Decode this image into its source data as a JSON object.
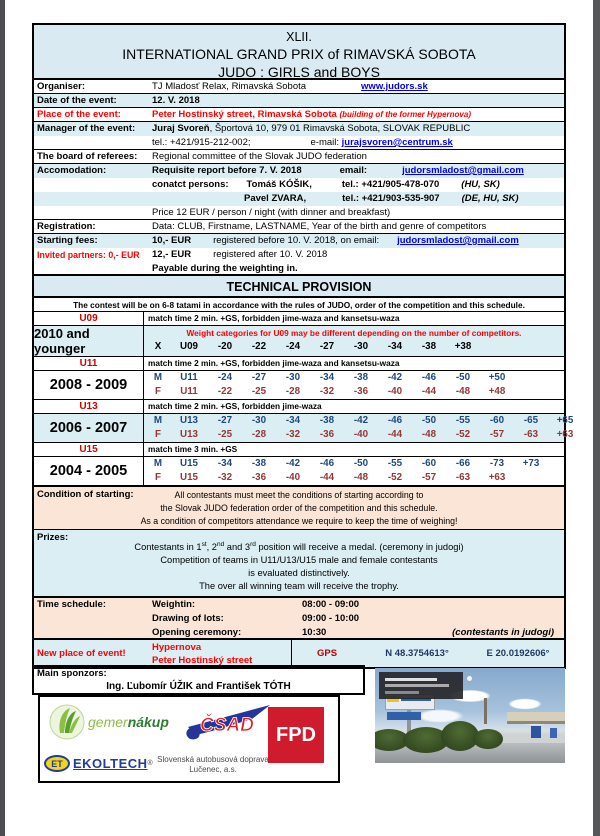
{
  "title": {
    "line1": "XLII.",
    "line2": "INTERNATIONAL GRAND PRIX of RIMAVSKÁ SOBOTA",
    "line3": "JUDO : GIRLS and BOYS"
  },
  "info": {
    "organiser": {
      "label": "Organiser:",
      "value": "TJ Mladosť Relax, Rimavská Sobota",
      "link": "www.judors.sk"
    },
    "date": {
      "label": "Date of the event:",
      "value": "12. V. 2018"
    },
    "place": {
      "label": "Place of the event:",
      "value": "Peter Hostinský street, Rimavská Sobota",
      "note": "(building of the former Hypernova)"
    },
    "manager": {
      "label": "Manager of the event:",
      "name": "Juraj Svoreň",
      "rest": ", Športová 10, 979 01 Rimavská Sobota, SLOVAK REPUBLIC",
      "tel": "tel.: +421/915-212-002;",
      "email_label": "e-mail:",
      "email": "jurajsvoren@centrum.sk"
    },
    "referees": {
      "label": "The board of referees:",
      "value": "Regional committee of the Slovak JUDO federation"
    },
    "accomodation": {
      "label": "Accomodation:",
      "l1_text": "Requisite report before 7. V. 2018",
      "l1_email_label": "email:",
      "l1_email": "judorsmladost@gmail.com",
      "l2_text": "conatct persons:",
      "l2_name": "Tomáš KÓŠIK,",
      "l2_tel": "tel.: +421/905-478-070",
      "l2_lang": "(HU, SK)",
      "l3_name": "Pavel ZVARA,",
      "l3_tel": "tel.: +421/903-535-907",
      "l3_lang": "(DE, HU, SK)",
      "l4_text": "Price 12 EUR / person / night (with dinner and breakfast)"
    },
    "registration": {
      "label": "Registration:",
      "value": "Data: CLUB, Firstname, LASTNAME, Year of the birth and genre of competitors"
    },
    "fees": {
      "label": "Starting fees:",
      "invited": "Invited partners: 0,- EUR",
      "l1_fee": "10,- EUR",
      "l1_text": "registered before 10. V. 2018, on email:",
      "l1_email": "judorsmladost@gmail.com",
      "l2_fee": "12,- EUR",
      "l2_text": "registered after 10. V. 2018",
      "l3_text": "Payable during the weighting in."
    }
  },
  "technical": {
    "header": "TECHNICAL PROVISION",
    "note": "The contest will be on 6-8 tatami in accordance with the rules of JUDO, order of the competition and this schedule."
  },
  "weights": {
    "u09": {
      "code": "U09",
      "years": "2010 and younger",
      "match": "match time 2 min. +GS, forbidden jime-waza and kansetsu-waza",
      "note": "Weight categories for U09 may be different depending on the number of competitors.",
      "x_row": {
        "sex": "X",
        "cat": "U09",
        "values": [
          "-20",
          "-22",
          "-24",
          "-27",
          "-30",
          "-34",
          "-38",
          "+38"
        ]
      }
    },
    "u11": {
      "code": "U11",
      "years": "2008 - 2009",
      "match": "match time 2 min. +GS, forbidden jime-waza and kansetsu-waza",
      "m": {
        "sex": "M",
        "cat": "U11",
        "values": [
          "-24",
          "-27",
          "-30",
          "-34",
          "-38",
          "-42",
          "-46",
          "-50",
          "+50"
        ]
      },
      "f": {
        "sex": "F",
        "cat": "U11",
        "values": [
          "-22",
          "-25",
          "-28",
          "-32",
          "-36",
          "-40",
          "-44",
          "-48",
          "+48"
        ]
      }
    },
    "u13": {
      "code": "U13",
      "years": "2006 - 2007",
      "match": "match time 2 min. +GS, forbidden jime-waza",
      "m": {
        "sex": "M",
        "cat": "U13",
        "values": [
          "-27",
          "-30",
          "-34",
          "-38",
          "-42",
          "-46",
          "-50",
          "-55",
          "-60",
          "-65",
          "+65"
        ]
      },
      "f": {
        "sex": "F",
        "cat": "U13",
        "values": [
          "-25",
          "-28",
          "-32",
          "-36",
          "-40",
          "-44",
          "-48",
          "-52",
          "-57",
          "-63",
          "+63"
        ]
      }
    },
    "u15": {
      "code": "U15",
      "years": "2004 - 2005",
      "match": "match time 3 min. +GS",
      "m": {
        "sex": "M",
        "cat": "U15",
        "values": [
          "-34",
          "-38",
          "-42",
          "-46",
          "-50",
          "-55",
          "-60",
          "-66",
          "-73",
          "+73"
        ]
      },
      "f": {
        "sex": "F",
        "cat": "U15",
        "values": [
          "-32",
          "-36",
          "-40",
          "-44",
          "-48",
          "-52",
          "-57",
          "-63",
          "+63"
        ]
      }
    }
  },
  "condition": {
    "label": "Condition of starting:",
    "lines": [
      "All contestants must meet the conditions of starting according to",
      "the Slovak JUDO federation order of the competition and this schedule.",
      "As a condition of competitors attendance we require to keep the time of weighing!"
    ]
  },
  "prizes": {
    "label": "Prizes:",
    "l1a": "Contestants in 1",
    "l1sup1": "st",
    "l1b": ", 2",
    "l1sup2": "nd",
    "l1c": " and 3",
    "l1sup3": "rd",
    "l1d": " position will receive a medal. (ceremony in judogi)",
    "l2": "Competition of teams in U11/U13/U15 male and female contestants",
    "l3": "is evaluated distinctively.",
    "l4": "The over all winning team will receive the trophy."
  },
  "schedule": {
    "label": "Time schedule:",
    "rows": [
      {
        "name": "Weightin:",
        "time": "08:00 - 09:00",
        "note": ""
      },
      {
        "name": "Drawing of lots:",
        "time": "09:00 - 10:00",
        "note": ""
      },
      {
        "name": "Opening ceremony:",
        "time": "10:30",
        "note": "(contestants in judogi)"
      }
    ]
  },
  "new_place": {
    "label": "New place of event!",
    "line1": "Hypernova",
    "line2": "Peter Hostinský street",
    "gps_label": "GPS",
    "lat": "N 48.3754613°",
    "lon": "E 20.0192606°"
  },
  "sponsors": {
    "label": "Main sponzors:",
    "names": "Ing. Ľubomír ÚŽIK and František TÓTH",
    "gemernakup_part1": "gemer",
    "gemernakup_part2": "nákup",
    "csad": "ČSAD",
    "fpd": "FPD",
    "ekoltech_et": "ET",
    "ekoltech_name": "EKOLTECH",
    "ekoltech_reg": "®",
    "sad_line1": "Slovenská autobusová doprava",
    "sad_line2": "Lučenec, a.s."
  },
  "colors": {
    "light_blue": "#daeef3",
    "peach": "#fbe5d6",
    "red": "#ff0000",
    "male_blue": "#1f497d",
    "female_red": "#953735",
    "link_blue": "#0000ee",
    "gps_navy": "#1f3864"
  }
}
